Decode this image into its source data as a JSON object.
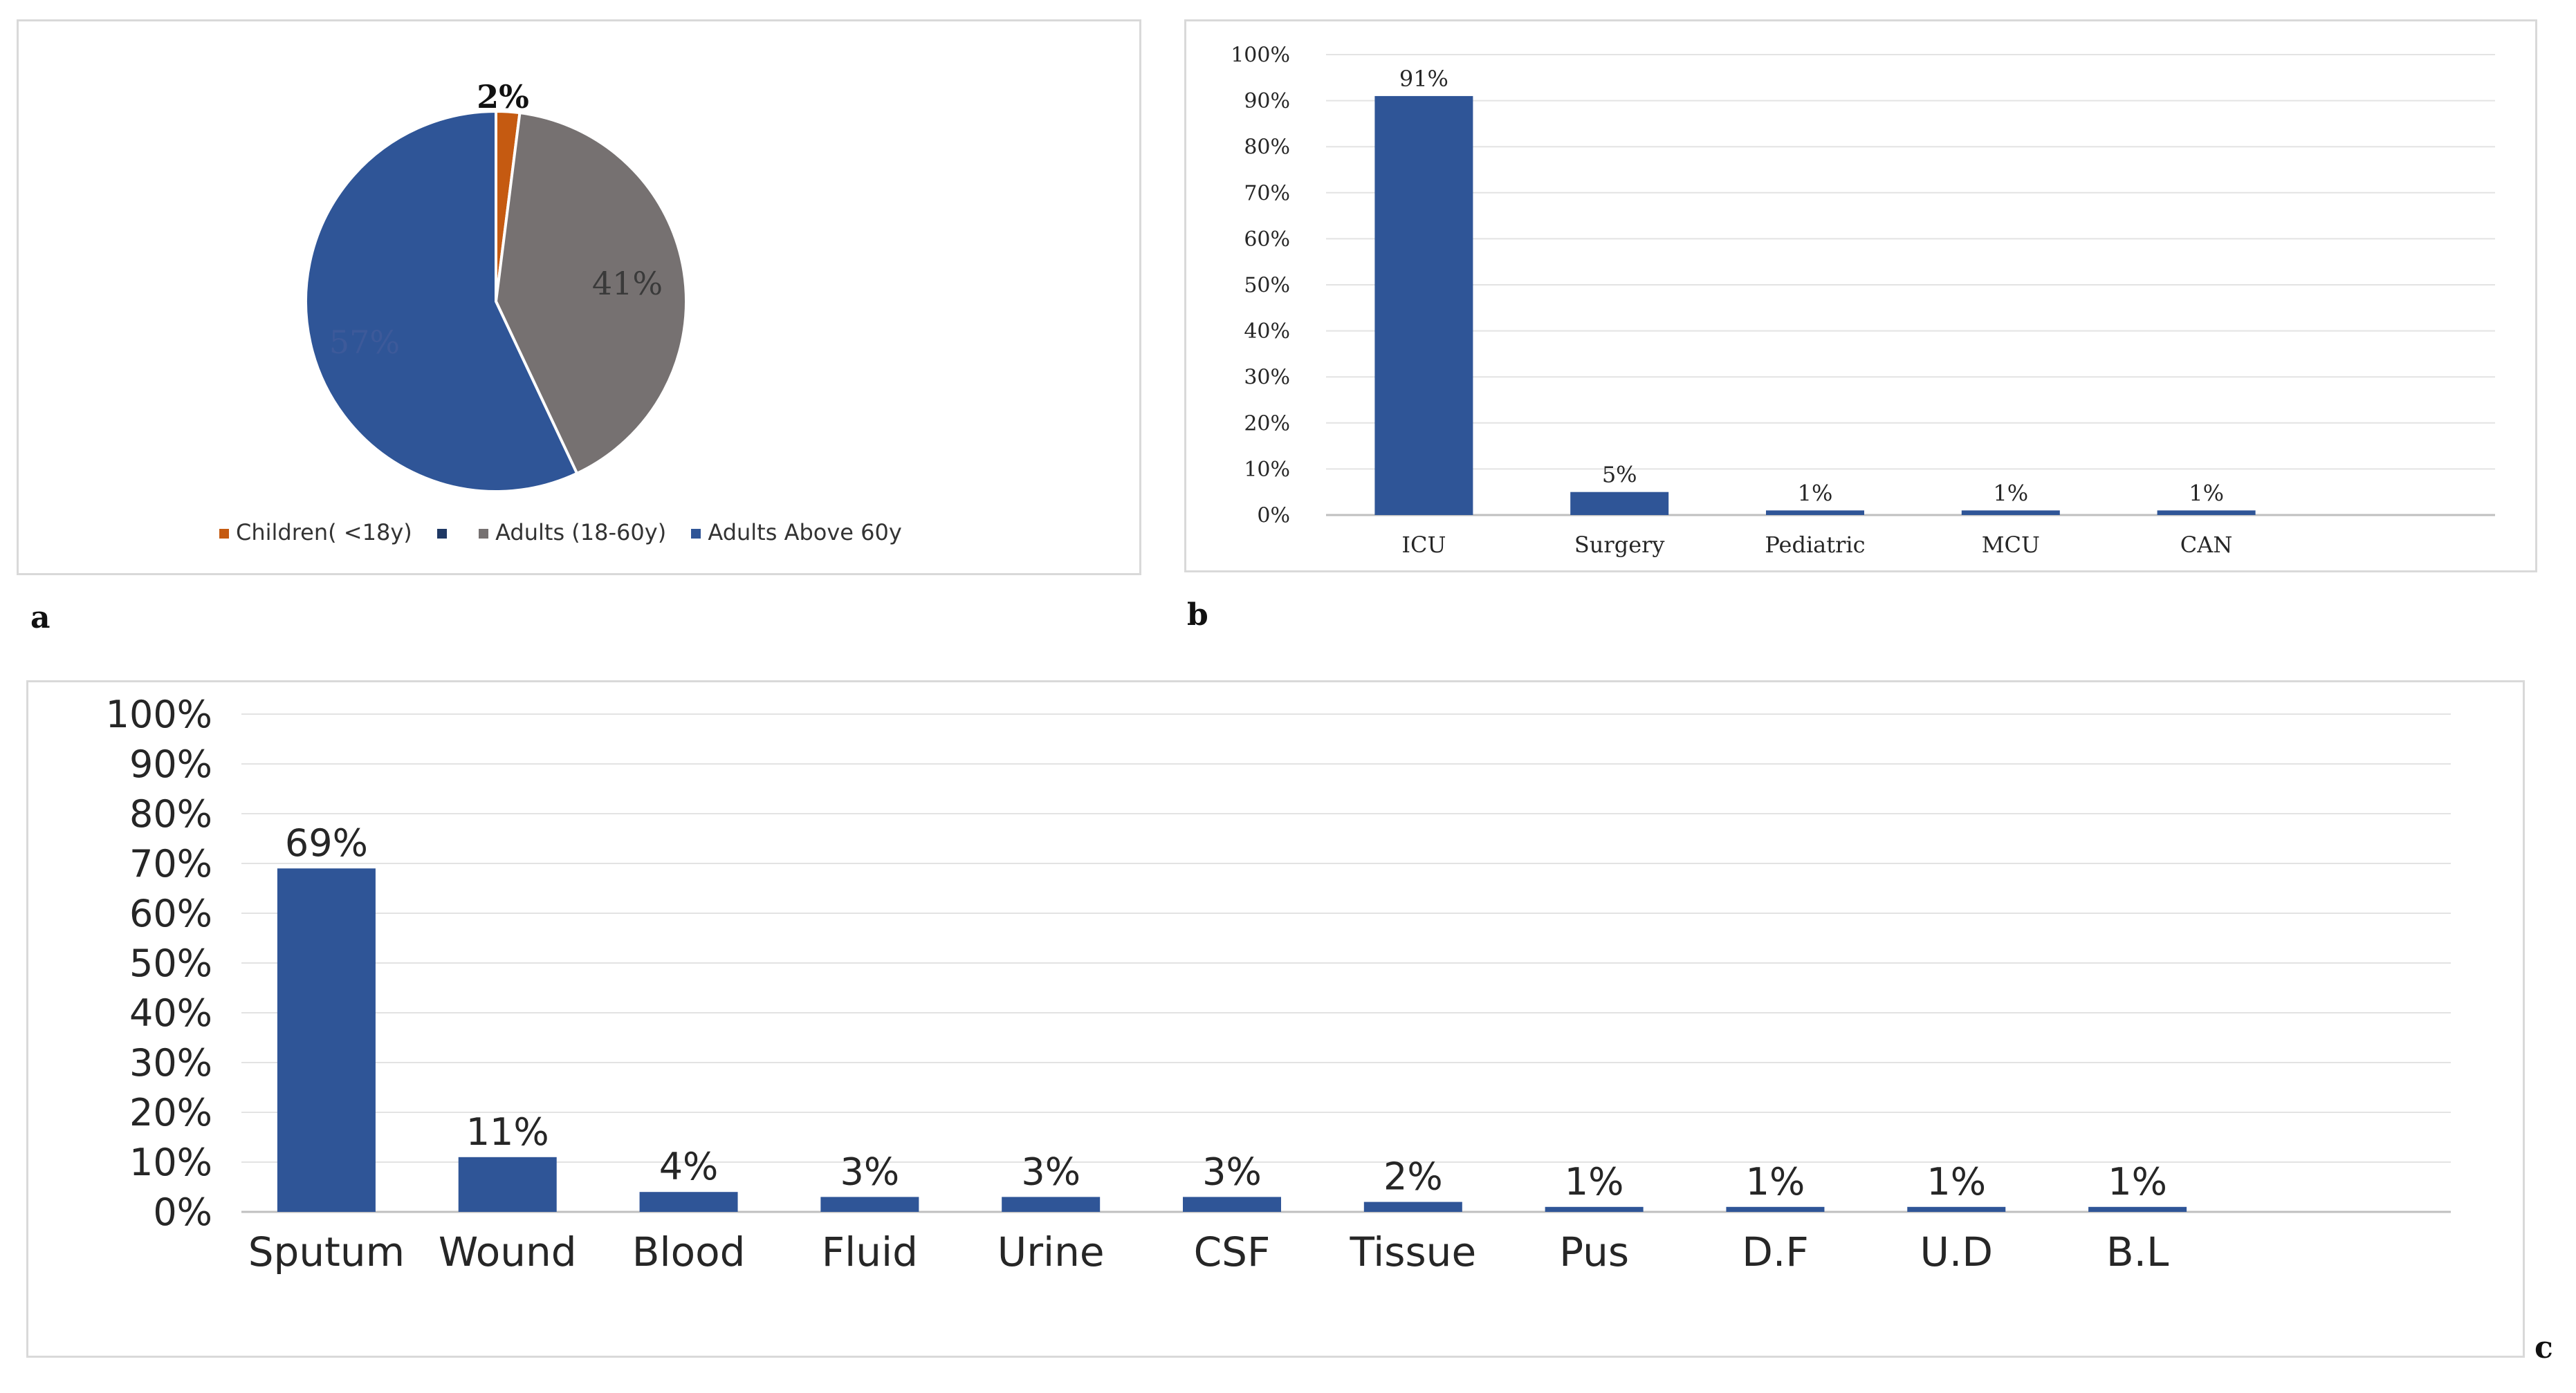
{
  "chart_data": [
    {
      "id": "a",
      "type": "pie",
      "panel_label": "a",
      "slices": [
        {
          "label": "Children( <18y)",
          "value": 2,
          "display": "2%",
          "color": "#c55a11"
        },
        {
          "label": "Adults (18-60y)",
          "value": 41,
          "display": "41%",
          "color": "#767171"
        },
        {
          "label": "Adults Above 60y",
          "value": 57,
          "display": "57%",
          "color": "#2f5597"
        }
      ],
      "legend_extra_marker_color": "#1f3864",
      "legend_position": "bottom"
    },
    {
      "id": "b",
      "type": "bar",
      "panel_label": "b",
      "categories": [
        "ICU",
        "Surgery",
        "Pediatric",
        "MCU",
        "CAN"
      ],
      "values": [
        91,
        5,
        1,
        1,
        1
      ],
      "data_labels": [
        "91%",
        "5%",
        "1%",
        "1%",
        "1%"
      ],
      "yticks": [
        "0%",
        "10%",
        "20%",
        "30%",
        "40%",
        "50%",
        "60%",
        "70%",
        "80%",
        "90%",
        "100%"
      ],
      "ylim": [
        0,
        100
      ],
      "grid": true,
      "bar_color": "#2f5597"
    },
    {
      "id": "c",
      "type": "bar",
      "panel_label": "c",
      "categories": [
        "Sputum",
        "Wound",
        "Blood",
        "Fluid",
        "Urine",
        "CSF",
        "Tissue",
        "Pus",
        "D.F",
        "U.D",
        "B.L"
      ],
      "values": [
        69,
        11,
        4,
        3,
        3,
        3,
        2,
        1,
        1,
        1,
        1
      ],
      "data_labels": [
        "69%",
        "11%",
        "4%",
        "3%",
        "3%",
        "3%",
        "2%",
        "1%",
        "1%",
        "1%",
        "1%"
      ],
      "yticks": [
        "0%",
        "10%",
        "20%",
        "30%",
        "40%",
        "50%",
        "60%",
        "70%",
        "80%",
        "90%",
        "100%"
      ],
      "ylim": [
        0,
        100
      ],
      "grid": true,
      "bar_color": "#2f5597"
    }
  ]
}
